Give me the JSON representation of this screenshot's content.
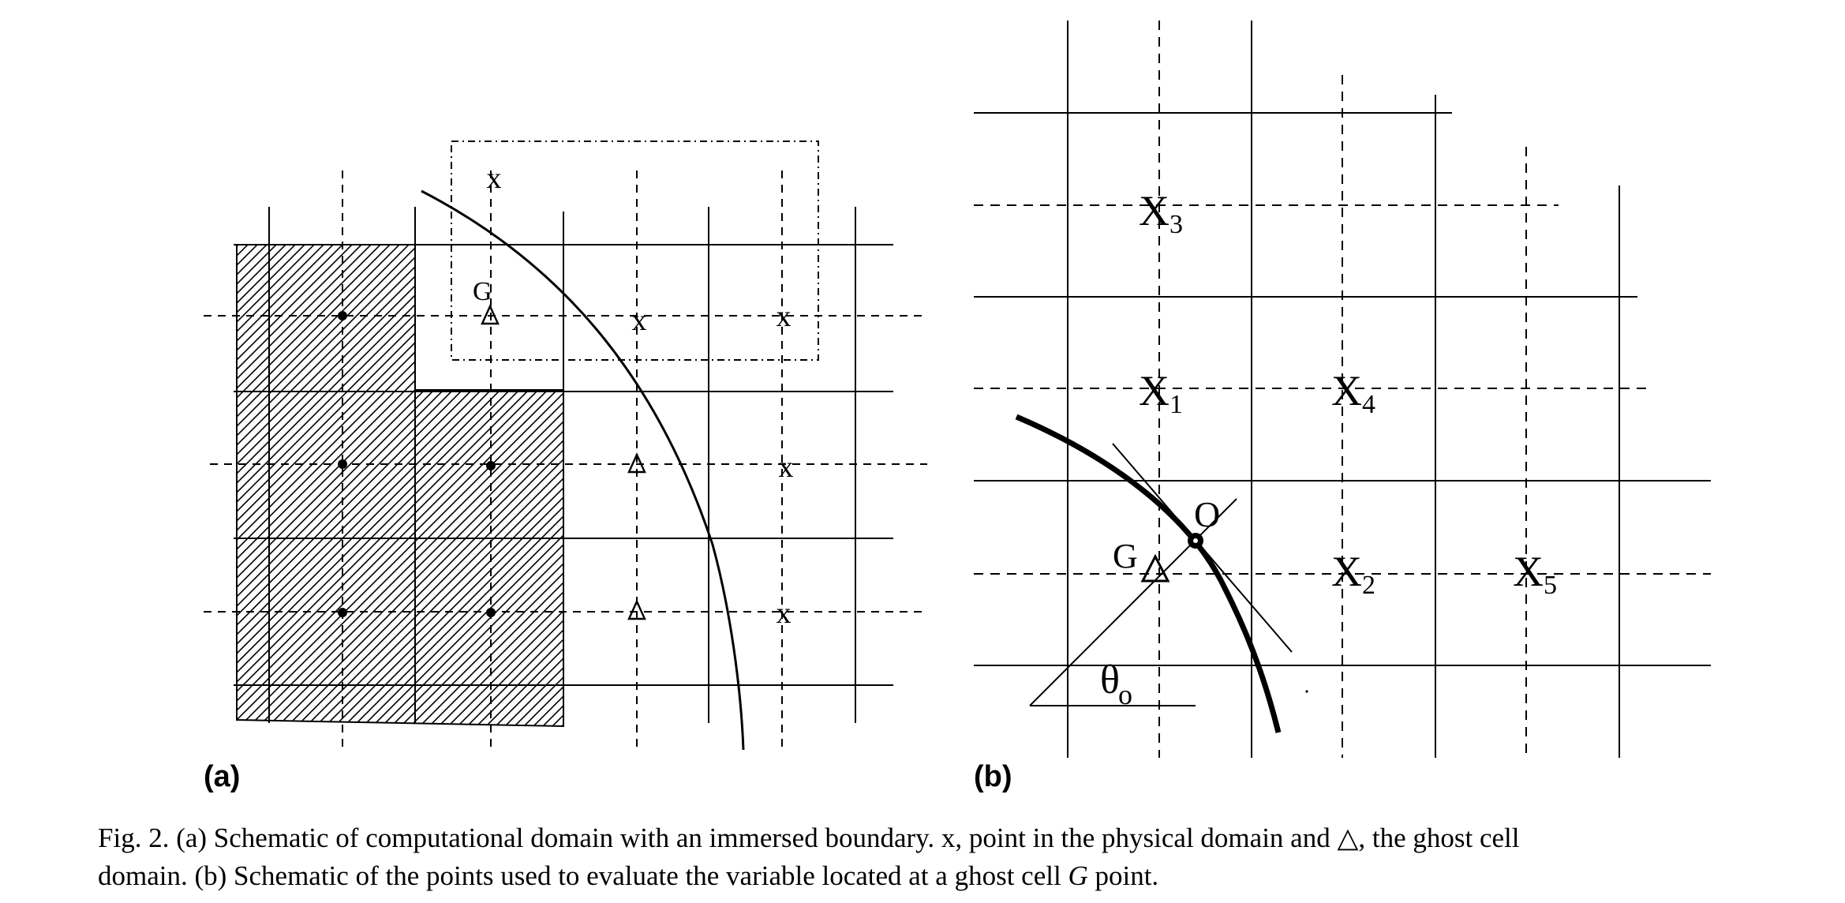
{
  "panels": {
    "a": {
      "label": "(a)",
      "markers": {
        "physical": "x",
        "ghost_label": "G"
      }
    },
    "b": {
      "label": "(b)",
      "ghost_label": "G",
      "intercept_label": "O",
      "angle_label": "θ",
      "angle_sub": "o",
      "points": [
        {
          "base": "X",
          "sub": "3"
        },
        {
          "base": "X",
          "sub": "1"
        },
        {
          "base": "X",
          "sub": "4"
        },
        {
          "base": "X",
          "sub": "2"
        },
        {
          "base": "X",
          "sub": "5"
        }
      ]
    }
  },
  "caption": {
    "line1": "Fig. 2. (a) Schematic of computational domain with an immersed boundary. x, point in the physical domain and △, the ghost cell",
    "line2_pre": "domain. (b) Schematic of the points used to evaluate the variable located at a ghost cell ",
    "line2_ital": "G",
    "line2_post": " point."
  }
}
